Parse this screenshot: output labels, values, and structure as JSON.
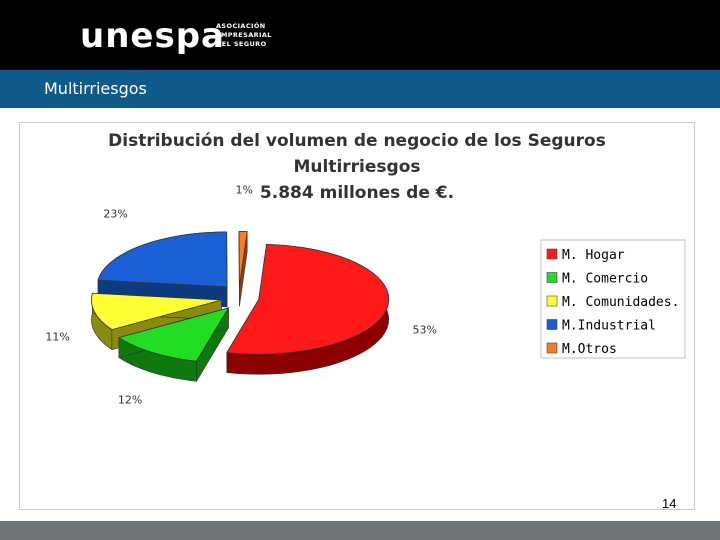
{
  "header": {
    "logo_text": "unespa",
    "logo_sub": [
      "ASOCIACIÓN",
      "EMPRESARIAL",
      "DEL SEGURO"
    ]
  },
  "section_title": "Multirriesgos",
  "page_number": "14",
  "colors": {
    "top_bar": "#000000",
    "title_bar": "#0f5a8a",
    "bottom_bar": "#6e7378"
  },
  "chart_data": {
    "type": "pie",
    "title_lines": [
      "Distribución del volumen de negocio de los Seguros",
      "Multirriesgos",
      "5.884 millones de €."
    ],
    "slices": [
      {
        "name": "M. Hogar",
        "value": 53,
        "label": "53%",
        "color": "#ff1a1a",
        "side": "#8c0000"
      },
      {
        "name": "M. Comercio",
        "value": 12,
        "label": "12%",
        "color": "#22dd22",
        "side": "#0e7a0e"
      },
      {
        "name": "M. Comunidades.",
        "value": 11,
        "label": "11%",
        "color": "#ffff33",
        "side": "#8a8a10"
      },
      {
        "name": "M.Industrial",
        "value": 23,
        "label": "23%",
        "color": "#1a5fd6",
        "side": "#0e3a80"
      },
      {
        "name": "M.Otros",
        "value": 1,
        "label": "1%",
        "color": "#ff7a26",
        "side": "#9a3d08"
      }
    ],
    "legend_placement": "right"
  }
}
